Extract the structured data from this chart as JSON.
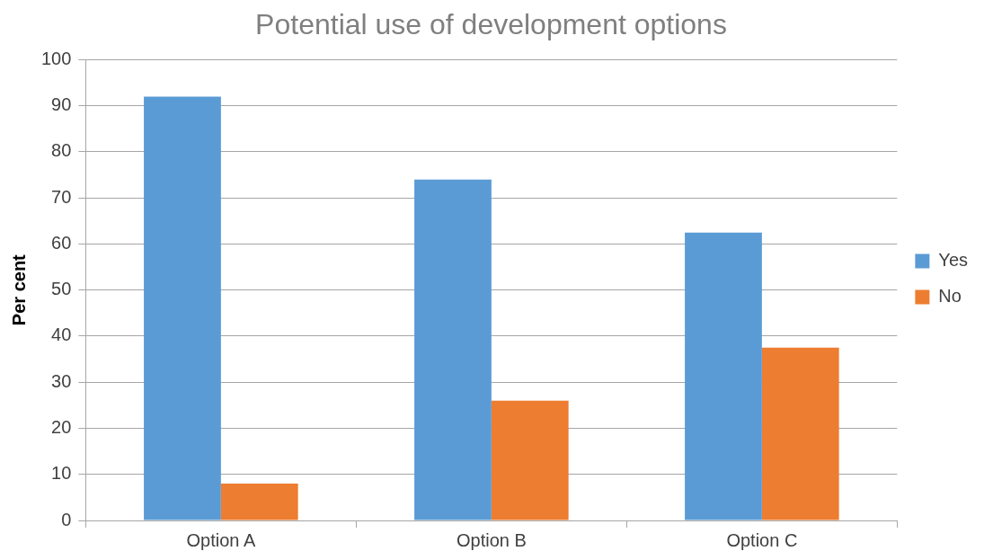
{
  "chart_data": {
    "type": "bar",
    "title": "Potential use of development options",
    "ylabel": "Per cent",
    "categories": [
      "Option A",
      "Option B",
      "Option C"
    ],
    "series": [
      {
        "name": "Yes",
        "color": "#5b9bd5",
        "values": [
          92,
          74,
          62.5
        ]
      },
      {
        "name": "No",
        "color": "#ed7d31",
        "values": [
          8,
          26,
          37.5
        ]
      }
    ],
    "ylim": [
      0,
      100
    ],
    "yticks": [
      0,
      10,
      20,
      30,
      40,
      50,
      60,
      70,
      80,
      90,
      100
    ],
    "grid": "y",
    "legend": "right"
  }
}
